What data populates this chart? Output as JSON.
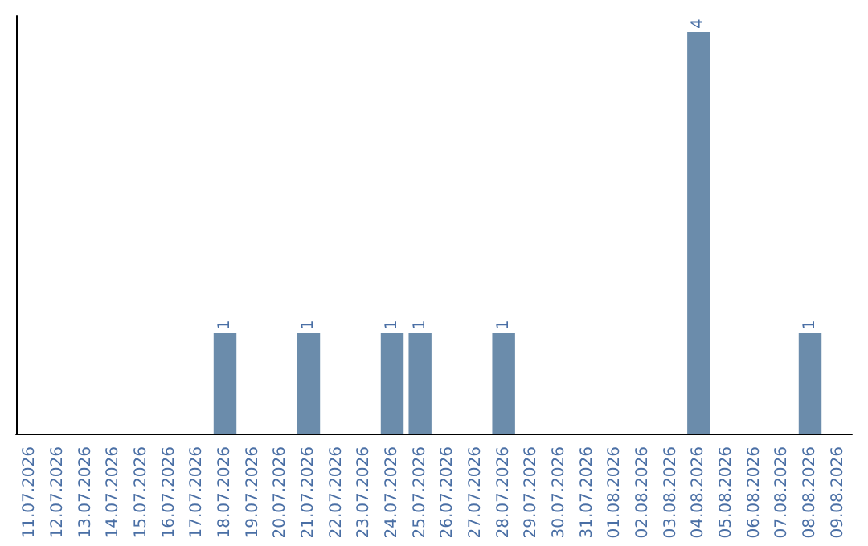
{
  "chart_data": {
    "type": "bar",
    "categories": [
      "11.07.2026",
      "12.07.2026",
      "13.07.2026",
      "14.07.2026",
      "15.07.2026",
      "16.07.2026",
      "17.07.2026",
      "18.07.2026",
      "19.07.2026",
      "20.07.2026",
      "21.07.2026",
      "22.07.2026",
      "23.07.2026",
      "24.07.2026",
      "25.07.2026",
      "26.07.2026",
      "27.07.2026",
      "28.07.2026",
      "29.07.2026",
      "30.07.2026",
      "31.07.2026",
      "01.08.2026",
      "02.08.2026",
      "03.08.2026",
      "04.08.2026",
      "05.08.2026",
      "06.08.2026",
      "07.08.2026",
      "08.08.2026",
      "09.08.2026"
    ],
    "values": [
      0,
      0,
      0,
      0,
      0,
      0,
      0,
      1,
      0,
      0,
      1,
      0,
      0,
      1,
      1,
      0,
      0,
      1,
      0,
      0,
      0,
      0,
      0,
      0,
      4,
      0,
      0,
      0,
      1,
      0
    ],
    "color": "#6b8cab",
    "value_labels": [
      null,
      null,
      null,
      null,
      null,
      null,
      null,
      "1",
      null,
      null,
      "1",
      null,
      null,
      "1",
      "1",
      null,
      null,
      "1",
      null,
      null,
      null,
      null,
      null,
      null,
      "4",
      null,
      null,
      null,
      "1",
      null
    ],
    "grid": false
  }
}
